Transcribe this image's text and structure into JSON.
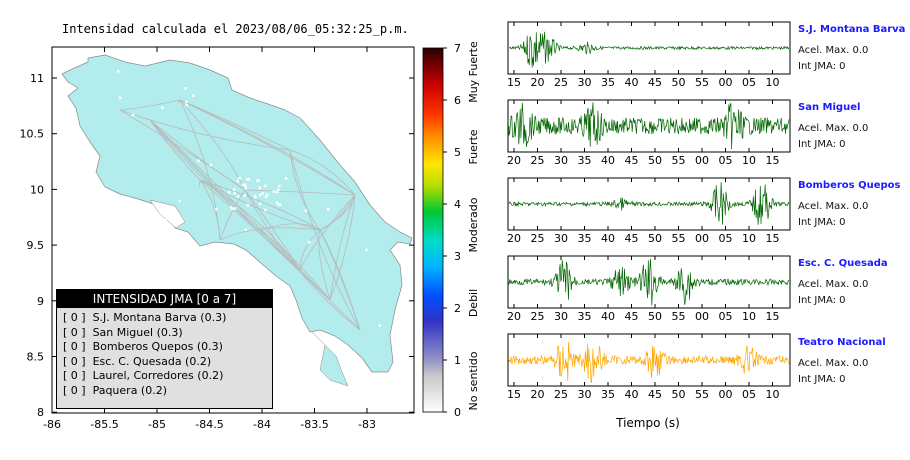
{
  "map_title": "Intensidad calculada el 2023/08/06_05:32:25_p.m.",
  "map": {
    "x_ticks": [
      "-86",
      "-85.5",
      "-85",
      "-84.5",
      "-84",
      "-83.5",
      "-83"
    ],
    "y_ticks": [
      "11",
      "10.5",
      "10",
      "9.5",
      "9",
      "8.5",
      "8"
    ],
    "land_color": "#b2ecec",
    "road_color": "#b9b9b9"
  },
  "legend": {
    "title": "INTENSIDAD JMA [0 a 7]",
    "items": [
      "[ 0 ]  S.J. Montana Barva (0.3)",
      "[ 0 ]  San Miguel (0.3)",
      "[ 0 ]  Bomberos Quepos (0.3)",
      "[ 0 ]  Esc. C. Quesada (0.2)",
      "[ 0 ]  Laurel, Corredores (0.2)",
      "[ 0 ]  Paquera (0.2)"
    ]
  },
  "colorbar": {
    "ticks": [
      "0",
      "1",
      "2",
      "3",
      "4",
      "5",
      "6",
      "7"
    ],
    "labels": [
      "No sentido",
      "Debil",
      "Moderado",
      "Fuerte",
      "Muy Fuerte"
    ]
  },
  "waveforms": {
    "xlabel": "Tiempo (s)",
    "stations": [
      {
        "name": "S.J. Montana Barva",
        "accel": "Acel. Max. 0.0",
        "int": "Int JMA: 0",
        "color": "#006400",
        "ticks": [
          "15",
          "20",
          "25",
          "30",
          "35",
          "40",
          "45",
          "50",
          "55",
          "00",
          "05",
          "10"
        ]
      },
      {
        "name": "San Miguel",
        "accel": "Acel. Max. 0.0",
        "int": "Int JMA: 0",
        "color": "#006400",
        "ticks": [
          "20",
          "25",
          "30",
          "35",
          "40",
          "45",
          "50",
          "55",
          "00",
          "05",
          "10",
          "15"
        ]
      },
      {
        "name": "Bomberos Quepos",
        "accel": "Acel. Max. 0.0",
        "int": "Int JMA: 0",
        "color": "#006400",
        "ticks": [
          "20",
          "25",
          "30",
          "35",
          "40",
          "45",
          "50",
          "55",
          "00",
          "05",
          "10",
          "15"
        ]
      },
      {
        "name": "Esc. C. Quesada",
        "accel": "Acel. Max. 0.0",
        "int": "Int JMA: 0",
        "color": "#006400",
        "ticks": [
          "20",
          "25",
          "30",
          "35",
          "40",
          "45",
          "50",
          "55",
          "00",
          "05",
          "10",
          "15"
        ]
      },
      {
        "name": "Teatro Nacional",
        "accel": "Acel. Max. 0.0",
        "int": "Int JMA: 0",
        "color": "#ffa500",
        "ticks": [
          "15",
          "20",
          "25",
          "30",
          "35",
          "40",
          "45",
          "50",
          "55",
          "00",
          "05",
          "10"
        ]
      }
    ]
  },
  "chart_data": [
    {
      "type": "map",
      "title": "Intensidad calculada el 2023/08/06_05:32:25_p.m.",
      "xlim": [
        -86,
        -82.6
      ],
      "ylim": [
        8,
        11.35
      ],
      "stations": [
        {
          "name": "S.J. Montana Barva",
          "intensity": 0,
          "value": 0.3
        },
        {
          "name": "San Miguel",
          "intensity": 0,
          "value": 0.3
        },
        {
          "name": "Bomberos Quepos",
          "intensity": 0,
          "value": 0.3
        },
        {
          "name": "Esc. C. Quesada",
          "intensity": 0,
          "value": 0.2
        },
        {
          "name": "Laurel, Corredores",
          "intensity": 0,
          "value": 0.2
        },
        {
          "name": "Paquera",
          "intensity": 0,
          "value": 0.2
        }
      ]
    },
    {
      "type": "line",
      "xlabel": "Tiempo (s)",
      "series": [
        {
          "name": "S.J. Montana Barva",
          "max_accel": 0.0,
          "int_jma": 0
        },
        {
          "name": "San Miguel",
          "max_accel": 0.0,
          "int_jma": 0
        },
        {
          "name": "Bomberos Quepos",
          "max_accel": 0.0,
          "int_jma": 0
        },
        {
          "name": "Esc. C. Quesada",
          "max_accel": 0.0,
          "int_jma": 0
        },
        {
          "name": "Teatro Nacional",
          "max_accel": 0.0,
          "int_jma": 0
        }
      ]
    }
  ]
}
